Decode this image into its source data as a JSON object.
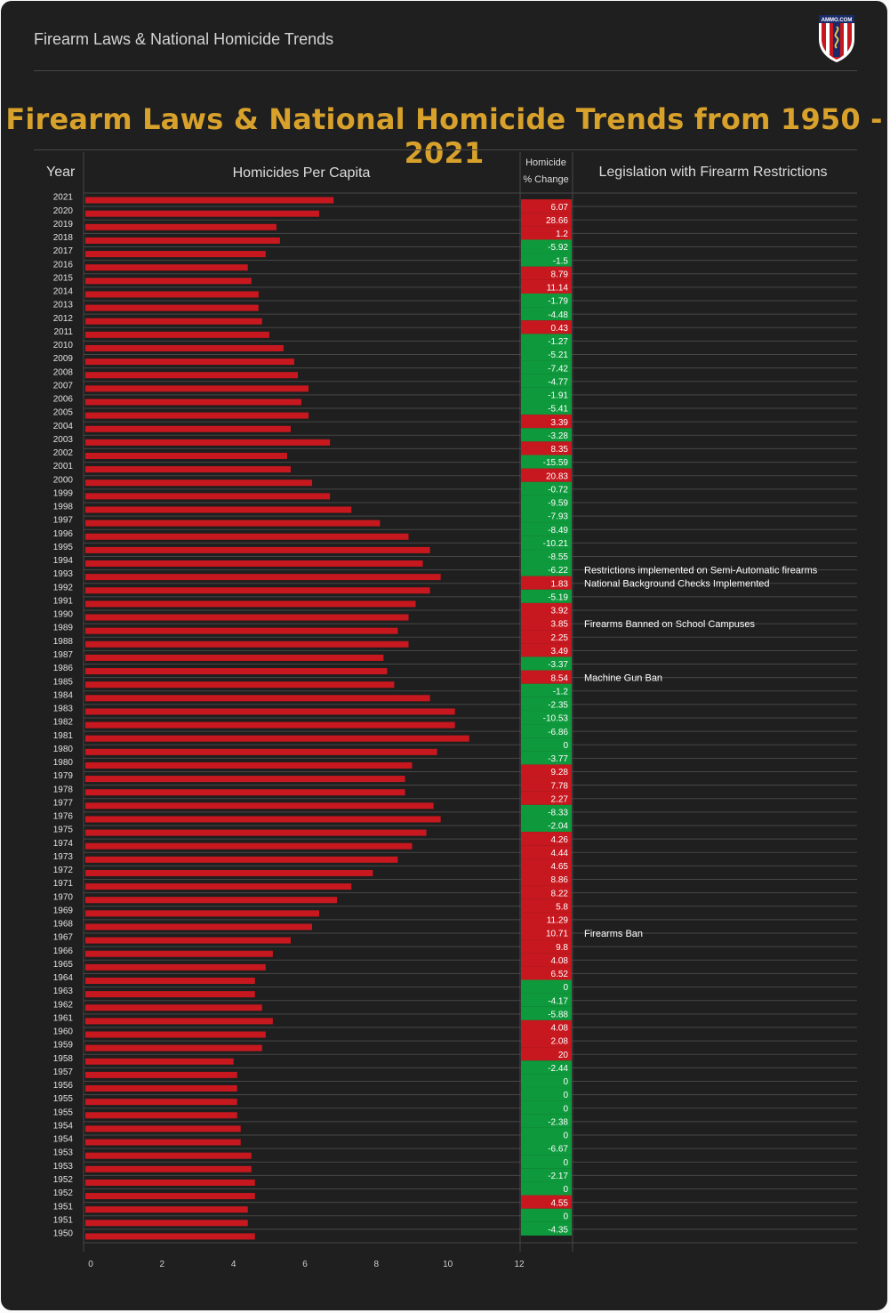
{
  "header": {
    "app_title": "Firearm Laws & National Homicide Trends",
    "logo_text": "AMMO.COM"
  },
  "title": "Firearm Laws & National Homicide Trends from 1950 - 2021",
  "columns": {
    "year": "Year",
    "per_capita": "Homicides Per Capita",
    "change_line1": "Homicide",
    "change_line2": "% Change",
    "legislation": "Legislation with Firearm Restrictions"
  },
  "colors": {
    "background": "#1f1f1f",
    "bar": "#c8181f",
    "positive_change": "#c8181f",
    "negative_change": "#0e9a3c",
    "title": "#d8a12b",
    "gridline": "#474747"
  },
  "chart_data": {
    "type": "bar",
    "orientation": "horizontal",
    "title": "Firearm Laws & National Homicide Trends from 1950 - 2021",
    "xlabel": "Homicides Per Capita",
    "ylabel": "Year",
    "xlim": [
      0,
      12
    ],
    "x_ticks": [
      0,
      2,
      4,
      6,
      8,
      10,
      12
    ],
    "grid": true,
    "rows": [
      {
        "year": "2021",
        "value": 6.8,
        "change": "6.07"
      },
      {
        "year": "2020",
        "value": 6.4,
        "change": "28.66"
      },
      {
        "year": "2019",
        "value": 5.2,
        "change": "1.2"
      },
      {
        "year": "2018",
        "value": 5.3,
        "change": "-5.92"
      },
      {
        "year": "2017",
        "value": 4.9,
        "change": "-1.5"
      },
      {
        "year": "2016",
        "value": 4.4,
        "change": "8.79"
      },
      {
        "year": "2015",
        "value": 4.5,
        "change": "11.14"
      },
      {
        "year": "2014",
        "value": 4.7,
        "change": "-1.79"
      },
      {
        "year": "2013",
        "value": 4.7,
        "change": "-4.48"
      },
      {
        "year": "2012",
        "value": 4.8,
        "change": "0.43"
      },
      {
        "year": "2011",
        "value": 5.0,
        "change": "-1.27"
      },
      {
        "year": "2010",
        "value": 5.4,
        "change": "-5.21"
      },
      {
        "year": "2009",
        "value": 5.7,
        "change": "-7.42"
      },
      {
        "year": "2008",
        "value": 5.8,
        "change": "-4.77"
      },
      {
        "year": "2007",
        "value": 6.1,
        "change": "-1.91"
      },
      {
        "year": "2006",
        "value": 5.9,
        "change": "-5.41"
      },
      {
        "year": "2005",
        "value": 6.1,
        "change": "3.39"
      },
      {
        "year": "2004",
        "value": 5.6,
        "change": "-3.28"
      },
      {
        "year": "2003",
        "value": 6.7,
        "change": "8.35"
      },
      {
        "year": "2002",
        "value": 5.5,
        "change": "-15.59"
      },
      {
        "year": "2001",
        "value": 5.6,
        "change": "20.83"
      },
      {
        "year": "2000",
        "value": 6.2,
        "change": "-0.72"
      },
      {
        "year": "1999",
        "value": 6.7,
        "change": "-9.59"
      },
      {
        "year": "1998",
        "value": 7.3,
        "change": "-7.93"
      },
      {
        "year": "1997",
        "value": 8.1,
        "change": "-8.49"
      },
      {
        "year": "1996",
        "value": 8.9,
        "change": "-10.21"
      },
      {
        "year": "1995",
        "value": 9.5,
        "change": "-8.55"
      },
      {
        "year": "1994",
        "value": 9.3,
        "change": "-6.22",
        "law": "Restrictions implemented on Semi-Automatic firearms"
      },
      {
        "year": "1993",
        "value": 9.8,
        "change": "1.83",
        "law": "National Background Checks Implemented"
      },
      {
        "year": "1992",
        "value": 9.5,
        "change": "-5.19"
      },
      {
        "year": "1991",
        "value": 9.1,
        "change": "3.92"
      },
      {
        "year": "1990",
        "value": 8.9,
        "change": "3.85",
        "law": "Firearms Banned on School Campuses"
      },
      {
        "year": "1989",
        "value": 8.6,
        "change": "2.25"
      },
      {
        "year": "1988",
        "value": 8.9,
        "change": "3.49"
      },
      {
        "year": "1987",
        "value": 8.2,
        "change": "-3.37"
      },
      {
        "year": "1986",
        "value": 8.3,
        "change": "8.54",
        "law": "Machine Gun Ban"
      },
      {
        "year": "1985",
        "value": 8.5,
        "change": "-1.2"
      },
      {
        "year": "1984",
        "value": 9.5,
        "change": "-2.35"
      },
      {
        "year": "1983",
        "value": 10.2,
        "change": "-10.53"
      },
      {
        "year": "1982",
        "value": 10.2,
        "change": "-6.86"
      },
      {
        "year": "1981",
        "value": 10.6,
        "change": "0"
      },
      {
        "year": "1980",
        "value": 9.7,
        "change": "-3.77"
      },
      {
        "year": "1980",
        "value": 9.0,
        "change": "9.28"
      },
      {
        "year": "1979",
        "value": 8.8,
        "change": "7.78"
      },
      {
        "year": "1978",
        "value": 8.8,
        "change": "2.27"
      },
      {
        "year": "1977",
        "value": 9.6,
        "change": "-8.33"
      },
      {
        "year": "1976",
        "value": 9.8,
        "change": "-2.04"
      },
      {
        "year": "1975",
        "value": 9.4,
        "change": "4.26"
      },
      {
        "year": "1974",
        "value": 9.0,
        "change": "4.44"
      },
      {
        "year": "1973",
        "value": 8.6,
        "change": "4.65"
      },
      {
        "year": "1972",
        "value": 7.9,
        "change": "8.86"
      },
      {
        "year": "1971",
        "value": 7.3,
        "change": "8.22"
      },
      {
        "year": "1970",
        "value": 6.9,
        "change": "5.8"
      },
      {
        "year": "1969",
        "value": 6.4,
        "change": "11.29"
      },
      {
        "year": "1968",
        "value": 6.2,
        "change": "10.71",
        "law": "Firearms Ban"
      },
      {
        "year": "1967",
        "value": 5.6,
        "change": "9.8"
      },
      {
        "year": "1966",
        "value": 5.1,
        "change": "4.08"
      },
      {
        "year": "1965",
        "value": 4.9,
        "change": "6.52"
      },
      {
        "year": "1964",
        "value": 4.6,
        "change": "0"
      },
      {
        "year": "1963",
        "value": 4.6,
        "change": "-4.17"
      },
      {
        "year": "1962",
        "value": 4.8,
        "change": "-5.88"
      },
      {
        "year": "1961",
        "value": 5.1,
        "change": "4.08"
      },
      {
        "year": "1960",
        "value": 4.9,
        "change": "2.08"
      },
      {
        "year": "1959",
        "value": 4.8,
        "change": "20"
      },
      {
        "year": "1958",
        "value": 4.0,
        "change": "-2.44"
      },
      {
        "year": "1957",
        "value": 4.1,
        "change": "0"
      },
      {
        "year": "1956",
        "value": 4.1,
        "change": "0"
      },
      {
        "year": "1955",
        "value": 4.1,
        "change": "0"
      },
      {
        "year": "1955",
        "value": 4.1,
        "change": "-2.38"
      },
      {
        "year": "1954",
        "value": 4.2,
        "change": "0"
      },
      {
        "year": "1954",
        "value": 4.2,
        "change": "-6.67"
      },
      {
        "year": "1953",
        "value": 4.5,
        "change": "0"
      },
      {
        "year": "1953",
        "value": 4.5,
        "change": "-2.17"
      },
      {
        "year": "1952",
        "value": 4.6,
        "change": "0"
      },
      {
        "year": "1952",
        "value": 4.6,
        "change": "4.55"
      },
      {
        "year": "1951",
        "value": 4.4,
        "change": "0"
      },
      {
        "year": "1951",
        "value": 4.4,
        "change": "-4.35"
      },
      {
        "year": "1950",
        "value": 4.6,
        "change": ""
      }
    ]
  }
}
